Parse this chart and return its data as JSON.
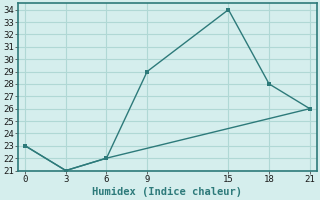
{
  "xlabel": "Humidex (Indice chaleur)",
  "line1_x": [
    0,
    3,
    6,
    9,
    15,
    18,
    21
  ],
  "line1_y": [
    23,
    21,
    22,
    29,
    34,
    28,
    26
  ],
  "line2_x": [
    0,
    3,
    6,
    21
  ],
  "line2_y": [
    23,
    21,
    22,
    26
  ],
  "line_color": "#2d7a7a",
  "bg_color": "#d5eeed",
  "plot_bg": "#d5eeed",
  "grid_color": "#b0d8d5",
  "spine_color": "#2d7a7a",
  "xlim": [
    -0.5,
    21.5
  ],
  "ylim": [
    21,
    34.5
  ],
  "xticks": [
    0,
    3,
    6,
    9,
    15,
    18,
    21
  ],
  "yticks": [
    21,
    22,
    23,
    24,
    25,
    26,
    27,
    28,
    29,
    30,
    31,
    32,
    33,
    34
  ],
  "tick_fontsize": 6.5,
  "xlabel_fontsize": 7.5
}
